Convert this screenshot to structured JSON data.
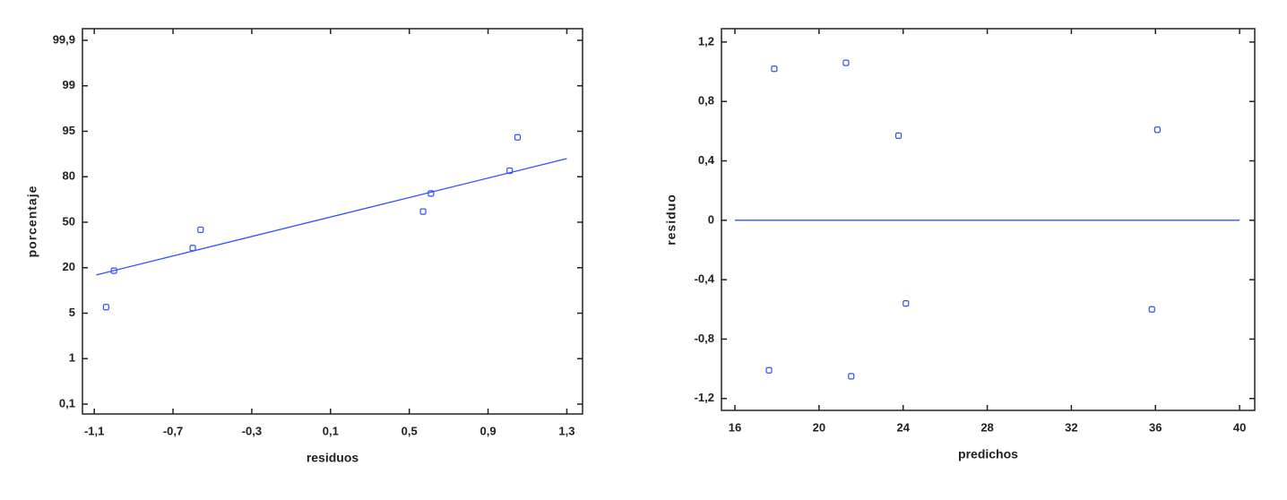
{
  "chart_data": [
    {
      "type": "scatter",
      "x_label": "residuos",
      "y_label": "porcentaje",
      "yscale": "probability",
      "color": "#3050ff",
      "x": [
        -1.04,
        -1.0,
        -0.6,
        -0.56,
        0.57,
        0.61,
        1.01,
        1.05
      ],
      "values": [
        7,
        19,
        33,
        45,
        57,
        69,
        82,
        93
      ],
      "fit_line": {
        "x": [
          -1.09,
          1.3
        ],
        "y": [
          17.6,
          86
        ]
      },
      "xlim": [
        -1.16,
        1.38
      ],
      "xticks": [
        {
          "value": -1.1,
          "label": "-1,1"
        },
        {
          "value": -0.7,
          "label": "-0,7"
        },
        {
          "value": -0.3,
          "label": "-0,3"
        },
        {
          "value": 0.1,
          "label": "0,1"
        },
        {
          "value": 0.5,
          "label": "0,5"
        },
        {
          "value": 0.9,
          "label": "0,9"
        },
        {
          "value": 1.3,
          "label": "1,3"
        }
      ],
      "ylim": [
        0.1,
        99.9
      ],
      "yticks": [
        {
          "value": 0.1,
          "label": "0,1"
        },
        1,
        5,
        20,
        50,
        80,
        95,
        99,
        {
          "value": 99.9,
          "label": "99,9"
        }
      ]
    },
    {
      "type": "scatter",
      "x_label": "predichos",
      "y_label": "residuo",
      "color": "#3050ff",
      "x": [
        17.87,
        21.28,
        23.78,
        36.09,
        24.13,
        35.83,
        17.62,
        21.53
      ],
      "values": [
        1.02,
        1.06,
        0.57,
        0.61,
        -0.56,
        -0.6,
        -1.01,
        -1.05
      ],
      "fit_line": {
        "x": [
          16,
          40
        ],
        "y": [
          0,
          0
        ]
      },
      "xlim": [
        15.36,
        40.72
      ],
      "xticks": [
        16,
        20,
        24,
        28,
        32,
        36,
        40
      ],
      "ylim": [
        -1.28,
        1.29
      ],
      "yticks": [
        {
          "value": -1.2,
          "label": "-1,2"
        },
        {
          "value": -0.8,
          "label": "-0,8"
        },
        {
          "value": -0.4,
          "label": "-0,4"
        },
        0,
        {
          "value": 0.4,
          "label": "0,4"
        },
        {
          "value": 0.8,
          "label": "0,8"
        },
        {
          "value": 1.2,
          "label": "1,2"
        }
      ]
    }
  ]
}
